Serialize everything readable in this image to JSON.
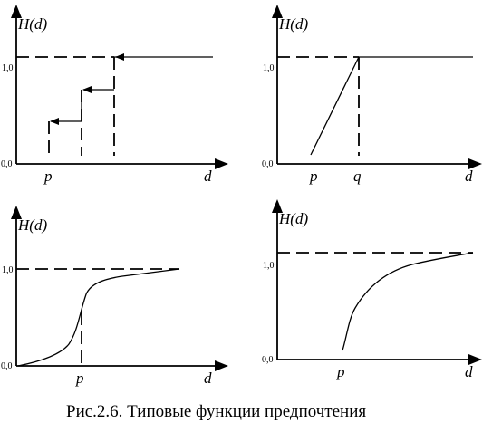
{
  "figure": {
    "caption": "Рис.2.6. Типовые функции предпочтения",
    "panels": [
      {
        "y_label": "H(d)",
        "tick_one": "1,0",
        "tick_zero": "0,0",
        "x_marks": [
          "p"
        ],
        "x_label": "d"
      },
      {
        "y_label": "H(d)",
        "tick_one": "1,0",
        "tick_zero": "0,0",
        "x_marks": [
          "p",
          "q"
        ],
        "x_label": "d"
      },
      {
        "y_label": "H(d)",
        "tick_one": "1,0",
        "tick_zero": "0,0",
        "x_marks": [
          "p"
        ],
        "x_label": "d"
      },
      {
        "y_label": "H(d)",
        "tick_one": "1,0",
        "tick_zero": "0,0",
        "x_marks": [
          "p"
        ],
        "x_label": "d"
      }
    ]
  }
}
